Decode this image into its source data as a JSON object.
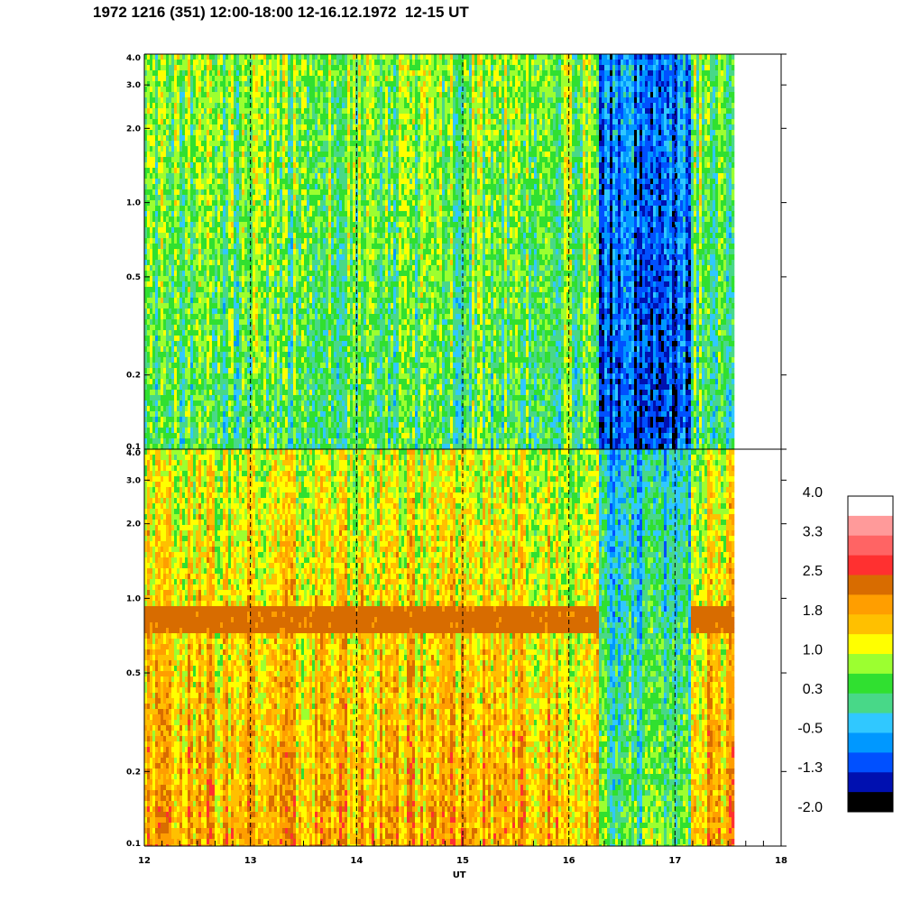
{
  "title": "1972 1216 (351) 12:00-18:00 12-16.12.1972  12-15 UT",
  "chart_data": [
    {
      "type": "heatmap",
      "panel": "top",
      "x_range": [
        12,
        18
      ],
      "y_scale": "log",
      "y_range": [
        0.1,
        4.0
      ],
      "y_ticks": [
        "4.0",
        "3.0",
        "2.0",
        "1.0",
        "0.5",
        "0.2",
        "0.1"
      ],
      "y_tick_values": [
        4.0,
        3.0,
        2.0,
        1.0,
        0.5,
        0.2,
        0.1
      ],
      "data_end_x": 17.55,
      "dashed_lines_x": [
        13,
        14,
        15,
        16,
        17
      ],
      "segments": [
        {
          "x": [
            12.0,
            16.27
          ],
          "base_level": 0.5
        },
        {
          "x": [
            16.27,
            17.15
          ],
          "base_level": -1.0
        },
        {
          "x": [
            17.15,
            17.55
          ],
          "base_level": 0.5
        }
      ]
    },
    {
      "type": "heatmap",
      "panel": "bottom",
      "x_range": [
        12,
        18
      ],
      "y_scale": "log",
      "y_range": [
        0.1,
        4.0
      ],
      "y_ticks": [
        "4.0",
        "3.0",
        "2.0",
        "1.0",
        "0.5",
        "0.2",
        "0.1"
      ],
      "y_tick_values": [
        4.0,
        3.0,
        2.0,
        1.0,
        0.5,
        0.2,
        0.1
      ],
      "data_end_x": 17.55,
      "dashed_lines_x": [
        13,
        14,
        15,
        16,
        17
      ],
      "band_freq": [
        0.75,
        0.97
      ],
      "segments": [
        {
          "x": [
            12.0,
            16.27
          ],
          "base_level": 1.8
        },
        {
          "x": [
            16.27,
            17.15
          ],
          "base_level": 0.5
        },
        {
          "x": [
            17.15,
            17.55
          ],
          "base_level": 1.8
        }
      ]
    }
  ],
  "x_axis": {
    "label": "UT",
    "ticks": [
      "12",
      "13",
      "14",
      "15",
      "16",
      "17",
      "18"
    ],
    "tick_values": [
      12,
      13,
      14,
      15,
      16,
      17,
      18
    ]
  },
  "colorbar": {
    "labels": [
      "4.0",
      "3.3",
      "2.5",
      "1.8",
      "1.0",
      "0.3",
      "-0.5",
      "-1.3",
      "-2.0"
    ],
    "colors": [
      "#ffffff",
      "#ff9a9a",
      "#ff6464",
      "#ff3030",
      "#d86c00",
      "#ff9e00",
      "#ffc000",
      "#ffff00",
      "#9cff30",
      "#30e030",
      "#48d888",
      "#30c8ff",
      "#0098ff",
      "#0050ff",
      "#0010b0",
      "#000000"
    ]
  }
}
